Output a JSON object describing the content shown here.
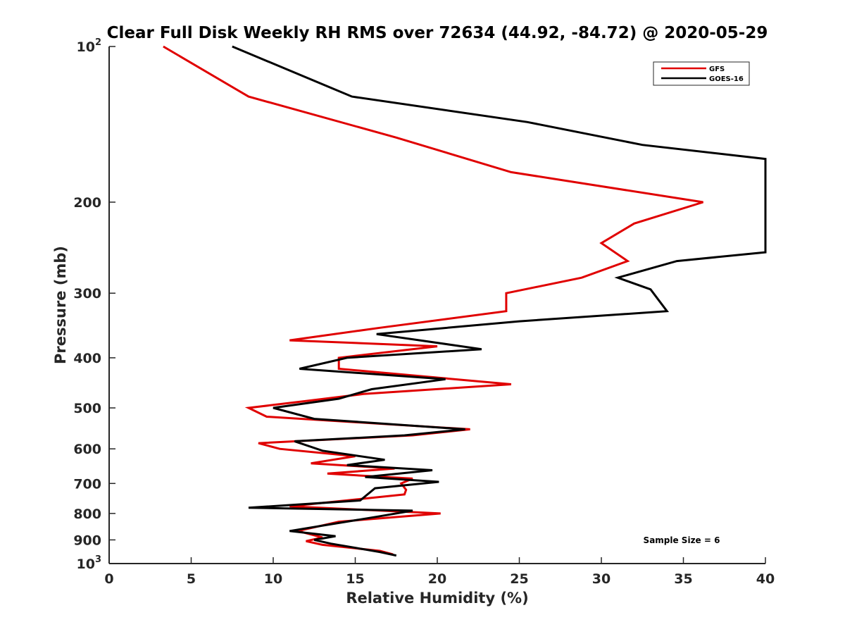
{
  "chart_data": {
    "type": "line",
    "title": "Clear Full Disk Weekly RH RMS over 72634 (44.92, -84.72) @ 2020-05-29",
    "xlabel": "Relative Humidity (%)",
    "ylabel": "Pressure (mb)",
    "xlim": [
      0,
      40
    ],
    "ylim": [
      100,
      1000
    ],
    "yscale": "log",
    "y_reversed": true,
    "x_ticks": [
      0,
      5,
      10,
      15,
      20,
      25,
      30,
      35,
      40
    ],
    "x_tick_labels": [
      "0",
      "5",
      "10",
      "15",
      "20",
      "25",
      "30",
      "35",
      "40"
    ],
    "y_ticks": [
      100,
      200,
      300,
      400,
      500,
      600,
      700,
      800,
      900,
      1000
    ],
    "y_tick_labels": [
      {
        "base": "10",
        "sup": "2"
      },
      {
        "text": "200"
      },
      {
        "text": "300"
      },
      {
        "text": "400"
      },
      {
        "text": "500"
      },
      {
        "text": "600"
      },
      {
        "text": "700"
      },
      {
        "text": "800"
      },
      {
        "text": "900"
      },
      {
        "base": "10",
        "sup": "3"
      }
    ],
    "legend_position": "top-right",
    "annotation": "Sample Size = 6",
    "series": [
      {
        "name": "GFS",
        "color": "#e00000",
        "points": [
          [
            3.3,
            100
          ],
          [
            8.5,
            125
          ],
          [
            17.5,
            150
          ],
          [
            24.5,
            175
          ],
          [
            36.2,
            200
          ],
          [
            32.0,
            220
          ],
          [
            30.0,
            240
          ],
          [
            31.6,
            260
          ],
          [
            28.8,
            280
          ],
          [
            24.2,
            300
          ],
          [
            24.2,
            325
          ],
          [
            16.5,
            350
          ],
          [
            11.0,
            370
          ],
          [
            20.0,
            380
          ],
          [
            14.0,
            400
          ],
          [
            14.0,
            420
          ],
          [
            24.5,
            450
          ],
          [
            15.5,
            470
          ],
          [
            12.0,
            485
          ],
          [
            8.5,
            500
          ],
          [
            9.6,
            520
          ],
          [
            22.0,
            550
          ],
          [
            18.5,
            565
          ],
          [
            9.1,
            585
          ],
          [
            10.4,
            600
          ],
          [
            15.0,
            620
          ],
          [
            12.3,
            640
          ],
          [
            17.4,
            655
          ],
          [
            13.3,
            670
          ],
          [
            18.5,
            685
          ],
          [
            17.8,
            700
          ],
          [
            18.1,
            720
          ],
          [
            18.0,
            735
          ],
          [
            11.0,
            775
          ],
          [
            20.2,
            800
          ],
          [
            14.0,
            830
          ],
          [
            11.5,
            865
          ],
          [
            13.0,
            890
          ],
          [
            12.0,
            905
          ],
          [
            13.0,
            920
          ],
          [
            16.5,
            945
          ],
          [
            17.3,
            960
          ]
        ]
      },
      {
        "name": "GOES-16",
        "color": "#000000",
        "points": [
          [
            7.5,
            100
          ],
          [
            14.8,
            125
          ],
          [
            25.5,
            140
          ],
          [
            32.5,
            155
          ],
          [
            40.0,
            165
          ],
          [
            40.0,
            250
          ],
          [
            34.6,
            260
          ],
          [
            31.0,
            280
          ],
          [
            33.0,
            295
          ],
          [
            34.0,
            325
          ],
          [
            25.0,
            340
          ],
          [
            16.3,
            360
          ],
          [
            22.7,
            385
          ],
          [
            14.5,
            400
          ],
          [
            11.6,
            420
          ],
          [
            20.5,
            440
          ],
          [
            16.0,
            460
          ],
          [
            14.0,
            480
          ],
          [
            10.0,
            500
          ],
          [
            12.5,
            525
          ],
          [
            21.7,
            550
          ],
          [
            18.0,
            565
          ],
          [
            11.3,
            580
          ],
          [
            13.0,
            605
          ],
          [
            16.8,
            630
          ],
          [
            14.5,
            645
          ],
          [
            19.7,
            660
          ],
          [
            15.6,
            680
          ],
          [
            20.1,
            695
          ],
          [
            16.2,
            715
          ],
          [
            15.3,
            755
          ],
          [
            8.5,
            780
          ],
          [
            18.5,
            790
          ],
          [
            16.5,
            810
          ],
          [
            11.0,
            865
          ],
          [
            13.8,
            885
          ],
          [
            12.5,
            900
          ],
          [
            13.5,
            915
          ],
          [
            16.5,
            950
          ],
          [
            17.5,
            965
          ]
        ]
      }
    ]
  }
}
